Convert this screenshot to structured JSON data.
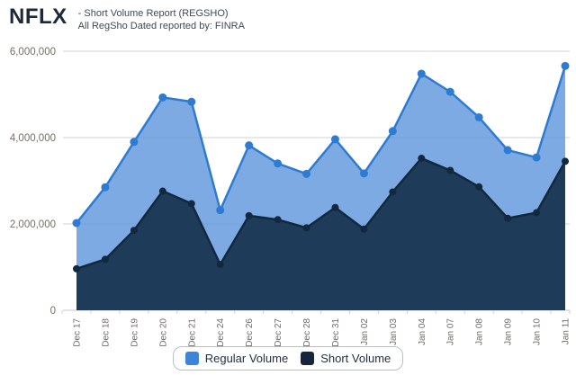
{
  "header": {
    "symbol": "NFLX",
    "subtitle_line1": "- Short Volume Report  (REGSHO)",
    "subtitle_line2": "All RegSho Dated reported by: FINRA"
  },
  "chart_data": {
    "type": "area",
    "title": "NFLX - Short Volume Report (REGSHO)",
    "xlabel": "",
    "ylabel": "",
    "categories": [
      "Dec 17",
      "Dec 18",
      "Dec 19",
      "Dec 20",
      "Dec 21",
      "Dec 24",
      "Dec 26",
      "Dec 27",
      "Dec 28",
      "Dec 31",
      "Jan 02",
      "Jan 03",
      "Jan 04",
      "Jan 07",
      "Jan 08",
      "Jan 09",
      "Jan 10",
      "Jan 11"
    ],
    "series": [
      {
        "name": "Regular Volume",
        "values": [
          2020000,
          2850000,
          3900000,
          4930000,
          4830000,
          2320000,
          3820000,
          3400000,
          3160000,
          3960000,
          3170000,
          4150000,
          5480000,
          5060000,
          4470000,
          3710000,
          3540000,
          5660000
        ],
        "fill_color": "#669bdd",
        "fill_opacity": 0.85,
        "line_color": "#2e7bd2",
        "marker_color": "#2e7bd2",
        "marker_radius": 4.5
      },
      {
        "name": "Short Volume",
        "values": [
          960000,
          1180000,
          1850000,
          2760000,
          2470000,
          1060000,
          2190000,
          2100000,
          1910000,
          2380000,
          1880000,
          2740000,
          3520000,
          3240000,
          2860000,
          2130000,
          2260000,
          3450000
        ],
        "fill_color": "#1e3c59",
        "fill_opacity": 1,
        "line_color": "#12283d",
        "marker_color": "#12283d",
        "marker_radius": 4
      }
    ],
    "ylim": [
      0,
      6000000
    ],
    "yticks": [
      0,
      2000000,
      4000000,
      6000000
    ],
    "ytick_labels": [
      "0",
      "2,000,000",
      "4,000,000",
      "6,000,000"
    ],
    "grid": true,
    "legend_position": "bottom",
    "axis_colors": {
      "grid": "#d2d2d2",
      "baseline": "#c3cbd5",
      "tick": "#c9d2da",
      "ylabel_text": "#756f69",
      "xlabel_text": "#6f6b66"
    }
  },
  "legend": {
    "items": [
      {
        "label": "Regular Volume",
        "color": "#3d85d8"
      },
      {
        "label": "Short Volume",
        "color": "#15263c"
      }
    ]
  }
}
